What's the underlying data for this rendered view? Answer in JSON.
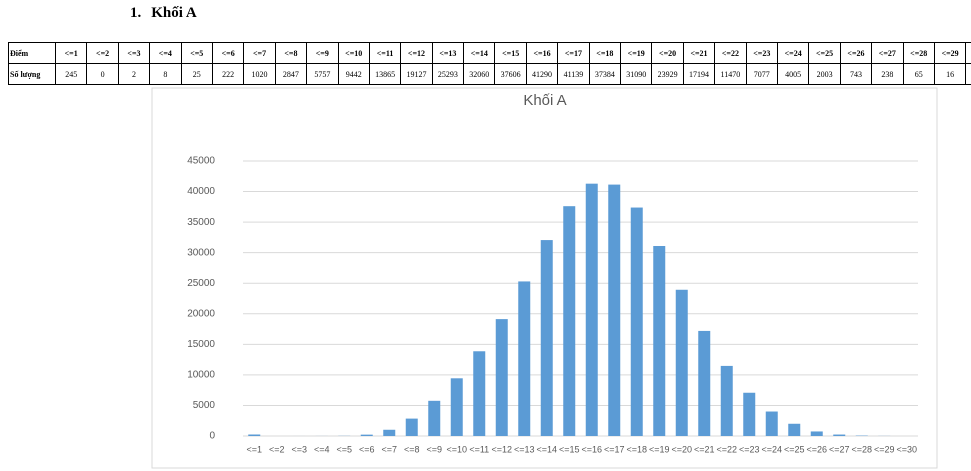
{
  "heading": {
    "number": "1.",
    "title": "Khối A"
  },
  "table": {
    "header_label": "Điểm",
    "row_label": "Số lượng"
  },
  "chart_data": {
    "type": "bar",
    "title": "Khối A",
    "categories": [
      "<=1",
      "<=2",
      "<=3",
      "<=4",
      "<=5",
      "<=6",
      "<=7",
      "<=8",
      "<=9",
      "<=10",
      "<=11",
      "<=12",
      "<=13",
      "<=14",
      "<=15",
      "<=16",
      "<=17",
      "<=18",
      "<=19",
      "<=20",
      "<=21",
      "<=22",
      "<=23",
      "<=24",
      "<=25",
      "<=26",
      "<=27",
      "<=28",
      "<=29",
      "<=30"
    ],
    "values": [
      245,
      0,
      2,
      8,
      25,
      222,
      1020,
      2847,
      5757,
      9442,
      13865,
      19127,
      25293,
      32060,
      37606,
      41290,
      41139,
      37384,
      31090,
      23929,
      17194,
      11470,
      7077,
      4005,
      2003,
      743,
      238,
      65,
      16,
      1
    ],
    "color": "#5b9bd5",
    "ylim": [
      0,
      45000
    ],
    "yticks": [
      0,
      5000,
      10000,
      15000,
      20000,
      25000,
      30000,
      35000,
      40000,
      45000
    ],
    "grid": true
  }
}
